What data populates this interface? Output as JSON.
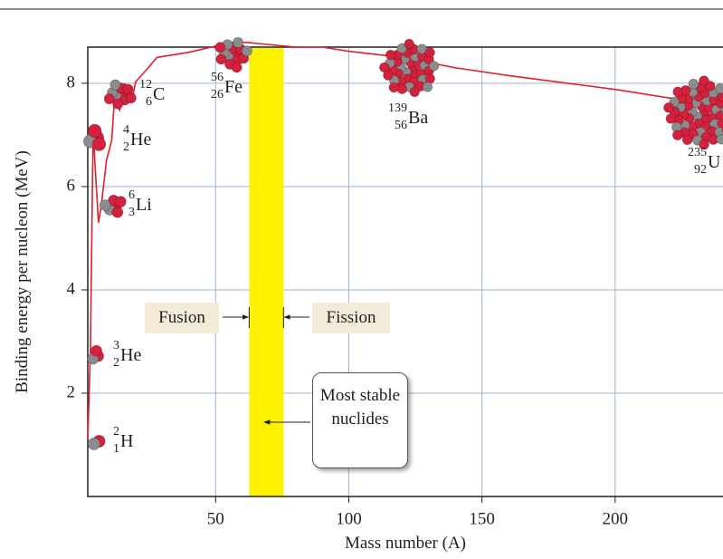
{
  "chart_data": {
    "type": "line",
    "y_label": "Binding energy per nucleon (MeV)",
    "x_label": "Mass number (A)",
    "x": [
      2,
      3,
      4,
      6,
      7,
      9,
      11,
      12,
      14,
      16,
      19,
      20,
      24,
      28,
      40,
      56,
      62,
      80,
      90,
      100,
      120,
      140,
      160,
      200,
      238
    ],
    "values": [
      1.1,
      2.8,
      7.07,
      5.3,
      5.6,
      6.5,
      6.9,
      7.68,
      7.48,
      7.98,
      7.78,
      8.03,
      8.26,
      8.5,
      8.6,
      8.79,
      8.79,
      8.7,
      8.7,
      8.62,
      8.5,
      8.3,
      8.15,
      7.88,
      7.57
    ],
    "color": "#d9232e",
    "xlim": [
      2,
      240.5
    ],
    "ylim": [
      0,
      8.7
    ],
    "xticks": [
      50,
      100,
      150,
      200
    ],
    "yticks": [
      2,
      4,
      6,
      8
    ],
    "grid": true,
    "stable_range": [
      62.6,
      75.5
    ],
    "nuclides": [
      {
        "mass": "2",
        "atomic": "1",
        "symbol": "H"
      },
      {
        "mass": "3",
        "atomic": "2",
        "symbol": "He"
      },
      {
        "mass": "6",
        "atomic": "3",
        "symbol": "Li"
      },
      {
        "mass": "4",
        "atomic": "2",
        "symbol": "He"
      },
      {
        "mass": "12",
        "atomic": "6",
        "symbol": "C"
      },
      {
        "mass": "56",
        "atomic": "26",
        "symbol": "Fe"
      },
      {
        "mass": "139",
        "atomic": "56",
        "symbol": "Ba"
      },
      {
        "mass": "235",
        "atomic": "92",
        "symbol": "U"
      }
    ],
    "annotations": {
      "fusion": "Fusion",
      "fission": "Fission",
      "stable": "Most stable nuclides"
    }
  }
}
